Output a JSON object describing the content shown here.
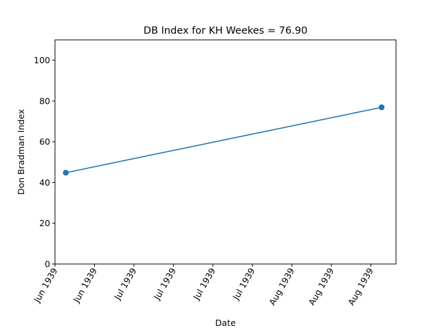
{
  "chart_data": {
    "type": "line",
    "title": "DB Index for KH Weekes = 76.90",
    "xlabel": "Date",
    "ylabel": "Don Bradman Index",
    "ylim": [
      0,
      110
    ],
    "yticks": [
      0,
      20,
      40,
      60,
      80,
      100
    ],
    "xlim": [
      "1939-05-26",
      "1939-08-29"
    ],
    "xticks": [
      {
        "date": "1939-05-26",
        "label": "Jun 1939"
      },
      {
        "date": "1939-06-06",
        "label": "Jun 1939"
      },
      {
        "date": "1939-06-17",
        "label": "Jul 1939"
      },
      {
        "date": "1939-06-28",
        "label": "Jul 1939"
      },
      {
        "date": "1939-07-09",
        "label": "Jul 1939"
      },
      {
        "date": "1939-07-20",
        "label": "Jul 1939"
      },
      {
        "date": "1939-07-31",
        "label": "Aug 1939"
      },
      {
        "date": "1939-08-11",
        "label": "Aug 1939"
      },
      {
        "date": "1939-08-22",
        "label": "Aug 1939"
      }
    ],
    "grid": false,
    "series": [
      {
        "color": "#1f77b4",
        "x": [
          "1939-05-29",
          "1939-08-25"
        ],
        "y": [
          44.8,
          76.9
        ]
      }
    ]
  }
}
